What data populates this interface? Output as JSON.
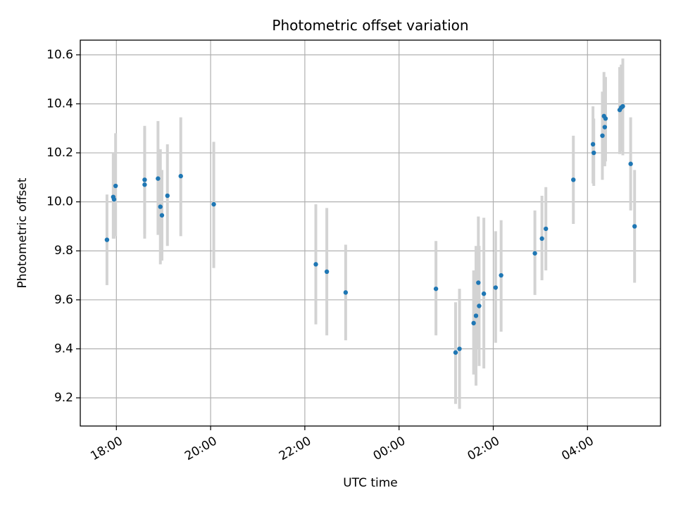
{
  "chart_data": {
    "type": "scatter",
    "title": "Photometric offset variation",
    "xlabel": "UTC time",
    "ylabel": "Photometric offset",
    "x_type": "time",
    "xlim": [
      "17:14",
      "05:33"
    ],
    "ylim": [
      9.085,
      10.66
    ],
    "x_ticks": [
      "18:00",
      "20:00",
      "22:00",
      "00:00",
      "02:00",
      "04:00"
    ],
    "y_ticks": [
      "9.2",
      "9.4",
      "9.6",
      "9.8",
      "10.0",
      "10.2",
      "10.4",
      "10.6"
    ],
    "y_tick_values": [
      9.2,
      9.4,
      9.6,
      9.8,
      10.0,
      10.2,
      10.4,
      10.6
    ],
    "grid": true,
    "colors": {
      "point": "#1f77b4",
      "error_bar": "#d3d3d3"
    },
    "points": [
      {
        "t": "17:48",
        "y": 9.845,
        "lo": 9.66,
        "hi": 10.03
      },
      {
        "t": "17:56",
        "y": 10.02,
        "lo": 9.85,
        "hi": 10.2
      },
      {
        "t": "17:57",
        "y": 10.01,
        "lo": 9.85,
        "hi": 10.18
      },
      {
        "t": "17:59",
        "y": 10.065,
        "lo": 9.86,
        "hi": 10.28
      },
      {
        "t": "18:36",
        "y": 10.09,
        "lo": 9.87,
        "hi": 10.31
      },
      {
        "t": "18:36",
        "y": 10.07,
        "lo": 9.85,
        "hi": 10.3
      },
      {
        "t": "18:53",
        "y": 10.095,
        "lo": 9.865,
        "hi": 10.33
      },
      {
        "t": "18:56",
        "y": 9.98,
        "lo": 9.745,
        "hi": 10.215
      },
      {
        "t": "18:58",
        "y": 9.945,
        "lo": 9.76,
        "hi": 10.13
      },
      {
        "t": "19:05",
        "y": 10.025,
        "lo": 9.82,
        "hi": 10.235
      },
      {
        "t": "19:22",
        "y": 10.105,
        "lo": 9.86,
        "hi": 10.345
      },
      {
        "t": "20:04",
        "y": 9.99,
        "lo": 9.73,
        "hi": 10.245
      },
      {
        "t": "22:14",
        "y": 9.745,
        "lo": 9.5,
        "hi": 9.99
      },
      {
        "t": "22:28",
        "y": 9.715,
        "lo": 9.455,
        "hi": 9.975
      },
      {
        "t": "22:52",
        "y": 9.63,
        "lo": 9.435,
        "hi": 9.825
      },
      {
        "t": "00:47",
        "y": 9.645,
        "lo": 9.455,
        "hi": 9.84
      },
      {
        "t": "01:12",
        "y": 9.385,
        "lo": 9.175,
        "hi": 9.59
      },
      {
        "t": "01:17",
        "y": 9.4,
        "lo": 9.155,
        "hi": 9.645
      },
      {
        "t": "01:35",
        "y": 9.505,
        "lo": 9.295,
        "hi": 9.72
      },
      {
        "t": "01:38",
        "y": 9.535,
        "lo": 9.25,
        "hi": 9.82
      },
      {
        "t": "01:41",
        "y": 9.67,
        "lo": 9.4,
        "hi": 9.94
      },
      {
        "t": "01:42",
        "y": 9.575,
        "lo": 9.33,
        "hi": 9.82
      },
      {
        "t": "01:48",
        "y": 9.625,
        "lo": 9.32,
        "hi": 9.935
      },
      {
        "t": "02:03",
        "y": 9.65,
        "lo": 9.425,
        "hi": 9.88
      },
      {
        "t": "02:10",
        "y": 9.7,
        "lo": 9.47,
        "hi": 9.925
      },
      {
        "t": "02:53",
        "y": 9.79,
        "lo": 9.62,
        "hi": 9.965
      },
      {
        "t": "03:02",
        "y": 9.85,
        "lo": 9.68,
        "hi": 10.025
      },
      {
        "t": "03:07",
        "y": 9.89,
        "lo": 9.72,
        "hi": 10.06
      },
      {
        "t": "03:42",
        "y": 10.09,
        "lo": 9.91,
        "hi": 10.27
      },
      {
        "t": "04:07",
        "y": 10.235,
        "lo": 10.075,
        "hi": 10.39
      },
      {
        "t": "04:08",
        "y": 10.2,
        "lo": 10.065,
        "hi": 10.34
      },
      {
        "t": "04:19",
        "y": 10.27,
        "lo": 10.09,
        "hi": 10.45
      },
      {
        "t": "04:21",
        "y": 10.35,
        "lo": 10.16,
        "hi": 10.53
      },
      {
        "t": "04:22",
        "y": 10.305,
        "lo": 10.145,
        "hi": 10.47
      },
      {
        "t": "04:23",
        "y": 10.34,
        "lo": 10.165,
        "hi": 10.51
      },
      {
        "t": "04:41",
        "y": 10.375,
        "lo": 10.195,
        "hi": 10.55
      },
      {
        "t": "04:43",
        "y": 10.385,
        "lo": 10.205,
        "hi": 10.56
      },
      {
        "t": "04:45",
        "y": 10.39,
        "lo": 10.19,
        "hi": 10.585
      },
      {
        "t": "04:55",
        "y": 10.155,
        "lo": 9.965,
        "hi": 10.345
      },
      {
        "t": "05:00",
        "y": 9.9,
        "lo": 9.67,
        "hi": 10.13
      }
    ]
  }
}
